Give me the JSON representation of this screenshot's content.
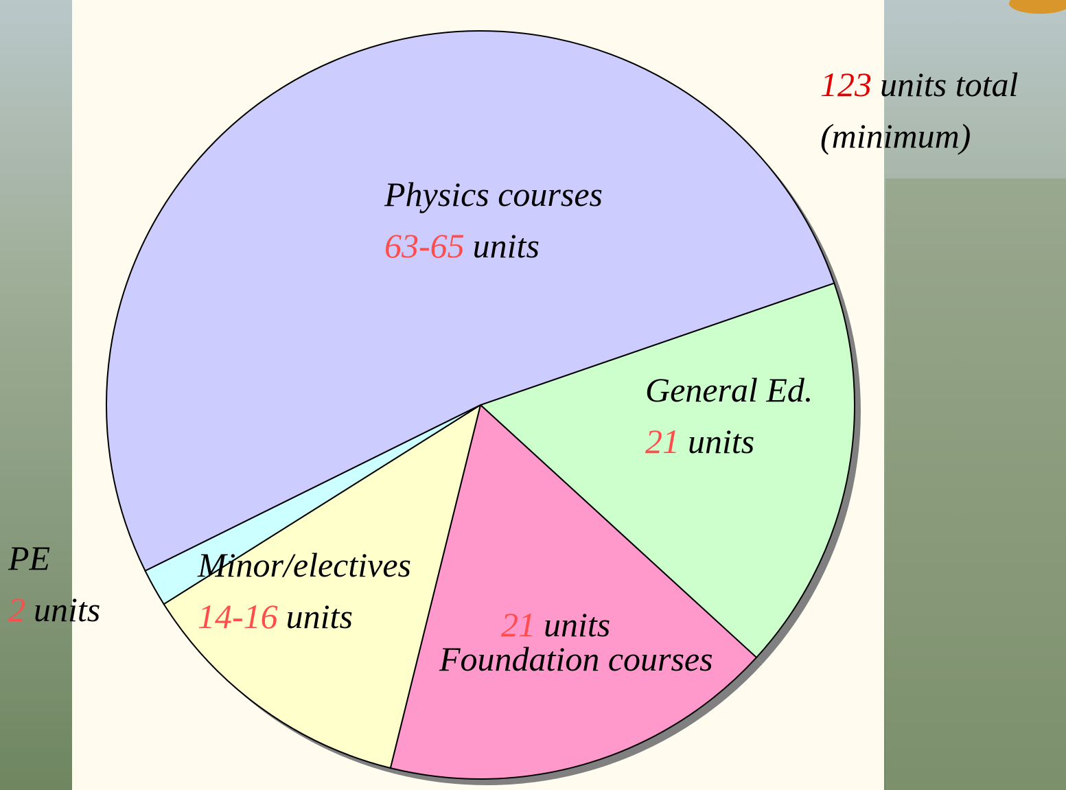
{
  "chart_data": {
    "type": "pie",
    "categories": [
      "General Ed.",
      "Foundation courses",
      "Minor/electives",
      "PE",
      "Physics courses"
    ],
    "values": [
      21,
      21,
      15,
      2,
      64
    ],
    "value_labels": [
      "21",
      "21",
      "14-16",
      "2",
      "63-65"
    ],
    "colors": [
      "#ccffcc",
      "#ff99cc",
      "#ffffcc",
      "#ccffff",
      "#ccccff"
    ],
    "unit": "units",
    "total": 123,
    "total_text": "units total",
    "total_note": "(minimum)"
  }
}
